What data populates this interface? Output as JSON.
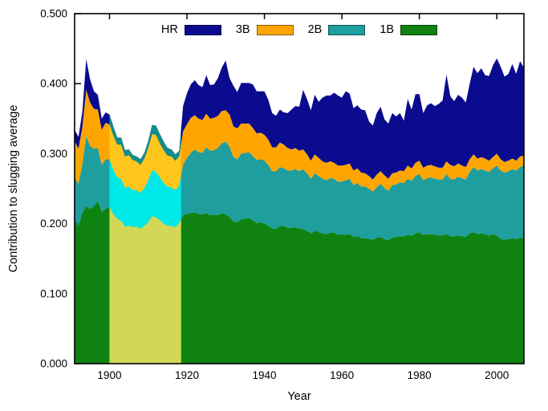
{
  "chart_data": {
    "type": "stacked-area",
    "title": "",
    "xlabel": "Year",
    "ylabel": "Contribution to slugging average",
    "xlim": [
      1891,
      2007
    ],
    "ylim": [
      0.0,
      0.5
    ],
    "xticks": [
      1900,
      1920,
      1940,
      1960,
      1980,
      2000
    ],
    "ytick_labels": [
      "0.000",
      "0.100",
      "0.200",
      "0.300",
      "0.400",
      "0.500"
    ],
    "ytick_values": [
      0.0,
      0.1,
      0.2,
      0.3,
      0.4,
      0.5
    ],
    "grid": false,
    "background": "#ffffff",
    "axis_color": "#000000",
    "highlight_band": {
      "from": 1900,
      "to": 1918.5
    },
    "series": [
      {
        "name": "1B",
        "color": "#0f8212",
        "band_color": "#d2d855",
        "values": [
          0.205,
          0.197,
          0.215,
          0.225,
          0.221,
          0.225,
          0.232,
          0.217,
          0.221,
          0.224,
          0.214,
          0.207,
          0.204,
          0.196,
          0.197,
          0.195,
          0.196,
          0.193,
          0.197,
          0.202,
          0.211,
          0.209,
          0.205,
          0.2,
          0.197,
          0.197,
          0.195,
          0.201,
          0.212,
          0.214,
          0.215,
          0.216,
          0.214,
          0.213,
          0.215,
          0.212,
          0.213,
          0.212,
          0.215,
          0.213,
          0.21,
          0.203,
          0.202,
          0.206,
          0.207,
          0.208,
          0.205,
          0.201,
          0.202,
          0.2,
          0.197,
          0.193,
          0.193,
          0.197,
          0.197,
          0.194,
          0.194,
          0.195,
          0.193,
          0.192,
          0.19,
          0.186,
          0.19,
          0.188,
          0.186,
          0.185,
          0.187,
          0.187,
          0.184,
          0.184,
          0.184,
          0.185,
          0.181,
          0.182,
          0.179,
          0.179,
          0.178,
          0.177,
          0.18,
          0.181,
          0.178,
          0.176,
          0.18,
          0.181,
          0.182,
          0.182,
          0.184,
          0.183,
          0.186,
          0.188,
          0.184,
          0.185,
          0.185,
          0.184,
          0.183,
          0.183,
          0.185,
          0.182,
          0.182,
          0.183,
          0.182,
          0.181,
          0.186,
          0.188,
          0.185,
          0.186,
          0.185,
          0.183,
          0.185,
          0.183,
          0.178,
          0.177,
          0.178,
          0.179,
          0.178,
          0.18,
          0.179
        ]
      },
      {
        "name": "2B",
        "color": "#1e9e9e",
        "band_color": "#00e9e9",
        "values": [
          0.062,
          0.06,
          0.07,
          0.1,
          0.09,
          0.082,
          0.076,
          0.067,
          0.071,
          0.068,
          0.063,
          0.059,
          0.06,
          0.055,
          0.056,
          0.053,
          0.052,
          0.051,
          0.054,
          0.06,
          0.065,
          0.065,
          0.061,
          0.058,
          0.056,
          0.055,
          0.053,
          0.053,
          0.072,
          0.08,
          0.086,
          0.09,
          0.088,
          0.088,
          0.094,
          0.092,
          0.092,
          0.096,
          0.1,
          0.104,
          0.1,
          0.092,
          0.09,
          0.094,
          0.094,
          0.094,
          0.092,
          0.09,
          0.09,
          0.09,
          0.087,
          0.082,
          0.082,
          0.084,
          0.082,
          0.082,
          0.082,
          0.083,
          0.082,
          0.086,
          0.082,
          0.078,
          0.082,
          0.08,
          0.078,
          0.077,
          0.078,
          0.077,
          0.076,
          0.076,
          0.078,
          0.079,
          0.074,
          0.076,
          0.074,
          0.074,
          0.072,
          0.069,
          0.072,
          0.076,
          0.073,
          0.071,
          0.075,
          0.075,
          0.077,
          0.076,
          0.08,
          0.078,
          0.082,
          0.083,
          0.078,
          0.08,
          0.081,
          0.08,
          0.08,
          0.08,
          0.086,
          0.082,
          0.081,
          0.084,
          0.083,
          0.082,
          0.088,
          0.093,
          0.091,
          0.092,
          0.091,
          0.091,
          0.094,
          0.1,
          0.098,
          0.096,
          0.097,
          0.099,
          0.098,
          0.101,
          0.104
        ]
      },
      {
        "name": "3B",
        "color": "#ffa500",
        "band_color": "#ffc61e",
        "values": [
          0.051,
          0.05,
          0.053,
          0.066,
          0.062,
          0.057,
          0.055,
          0.05,
          0.052,
          0.05,
          0.049,
          0.047,
          0.049,
          0.045,
          0.045,
          0.043,
          0.041,
          0.04,
          0.042,
          0.046,
          0.052,
          0.053,
          0.049,
          0.047,
          0.044,
          0.044,
          0.042,
          0.042,
          0.048,
          0.048,
          0.05,
          0.049,
          0.048,
          0.047,
          0.048,
          0.046,
          0.046,
          0.046,
          0.046,
          0.045,
          0.046,
          0.044,
          0.044,
          0.043,
          0.042,
          0.041,
          0.04,
          0.038,
          0.038,
          0.037,
          0.036,
          0.034,
          0.034,
          0.035,
          0.034,
          0.032,
          0.03,
          0.03,
          0.029,
          0.028,
          0.027,
          0.026,
          0.027,
          0.026,
          0.025,
          0.025,
          0.024,
          0.023,
          0.023,
          0.023,
          0.022,
          0.022,
          0.021,
          0.021,
          0.02,
          0.019,
          0.018,
          0.017,
          0.018,
          0.018,
          0.018,
          0.017,
          0.017,
          0.017,
          0.017,
          0.017,
          0.019,
          0.018,
          0.019,
          0.019,
          0.018,
          0.018,
          0.018,
          0.018,
          0.017,
          0.017,
          0.018,
          0.02,
          0.019,
          0.019,
          0.018,
          0.018,
          0.018,
          0.018,
          0.017,
          0.017,
          0.017,
          0.016,
          0.016,
          0.017,
          0.016,
          0.015,
          0.015,
          0.015,
          0.014,
          0.015,
          0.014
        ]
      },
      {
        "name": "HR",
        "color": "#0b0b8f",
        "band_color": "#128c8c",
        "values": [
          0.016,
          0.017,
          0.022,
          0.044,
          0.033,
          0.025,
          0.021,
          0.016,
          0.015,
          0.014,
          0.013,
          0.01,
          0.01,
          0.009,
          0.008,
          0.007,
          0.007,
          0.008,
          0.008,
          0.01,
          0.013,
          0.013,
          0.013,
          0.012,
          0.011,
          0.01,
          0.009,
          0.008,
          0.036,
          0.044,
          0.048,
          0.05,
          0.048,
          0.047,
          0.055,
          0.048,
          0.048,
          0.054,
          0.062,
          0.071,
          0.052,
          0.058,
          0.052,
          0.058,
          0.058,
          0.058,
          0.062,
          0.06,
          0.059,
          0.062,
          0.057,
          0.049,
          0.045,
          0.047,
          0.046,
          0.05,
          0.057,
          0.06,
          0.063,
          0.085,
          0.079,
          0.072,
          0.085,
          0.08,
          0.091,
          0.096,
          0.094,
          0.1,
          0.1,
          0.097,
          0.105,
          0.1,
          0.089,
          0.09,
          0.09,
          0.09,
          0.078,
          0.077,
          0.088,
          0.092,
          0.08,
          0.079,
          0.086,
          0.08,
          0.082,
          0.072,
          0.095,
          0.084,
          0.098,
          0.095,
          0.078,
          0.086,
          0.088,
          0.086,
          0.091,
          0.096,
          0.124,
          0.098,
          0.093,
          0.098,
          0.097,
          0.092,
          0.108,
          0.125,
          0.122,
          0.127,
          0.119,
          0.121,
          0.131,
          0.136,
          0.132,
          0.122,
          0.124,
          0.135,
          0.124,
          0.136,
          0.126
        ]
      }
    ],
    "legend": {
      "position": "top-center",
      "items": [
        {
          "label": "HR"
        },
        {
          "label": "3B"
        },
        {
          "label": "2B"
        },
        {
          "label": "1B"
        }
      ]
    }
  }
}
